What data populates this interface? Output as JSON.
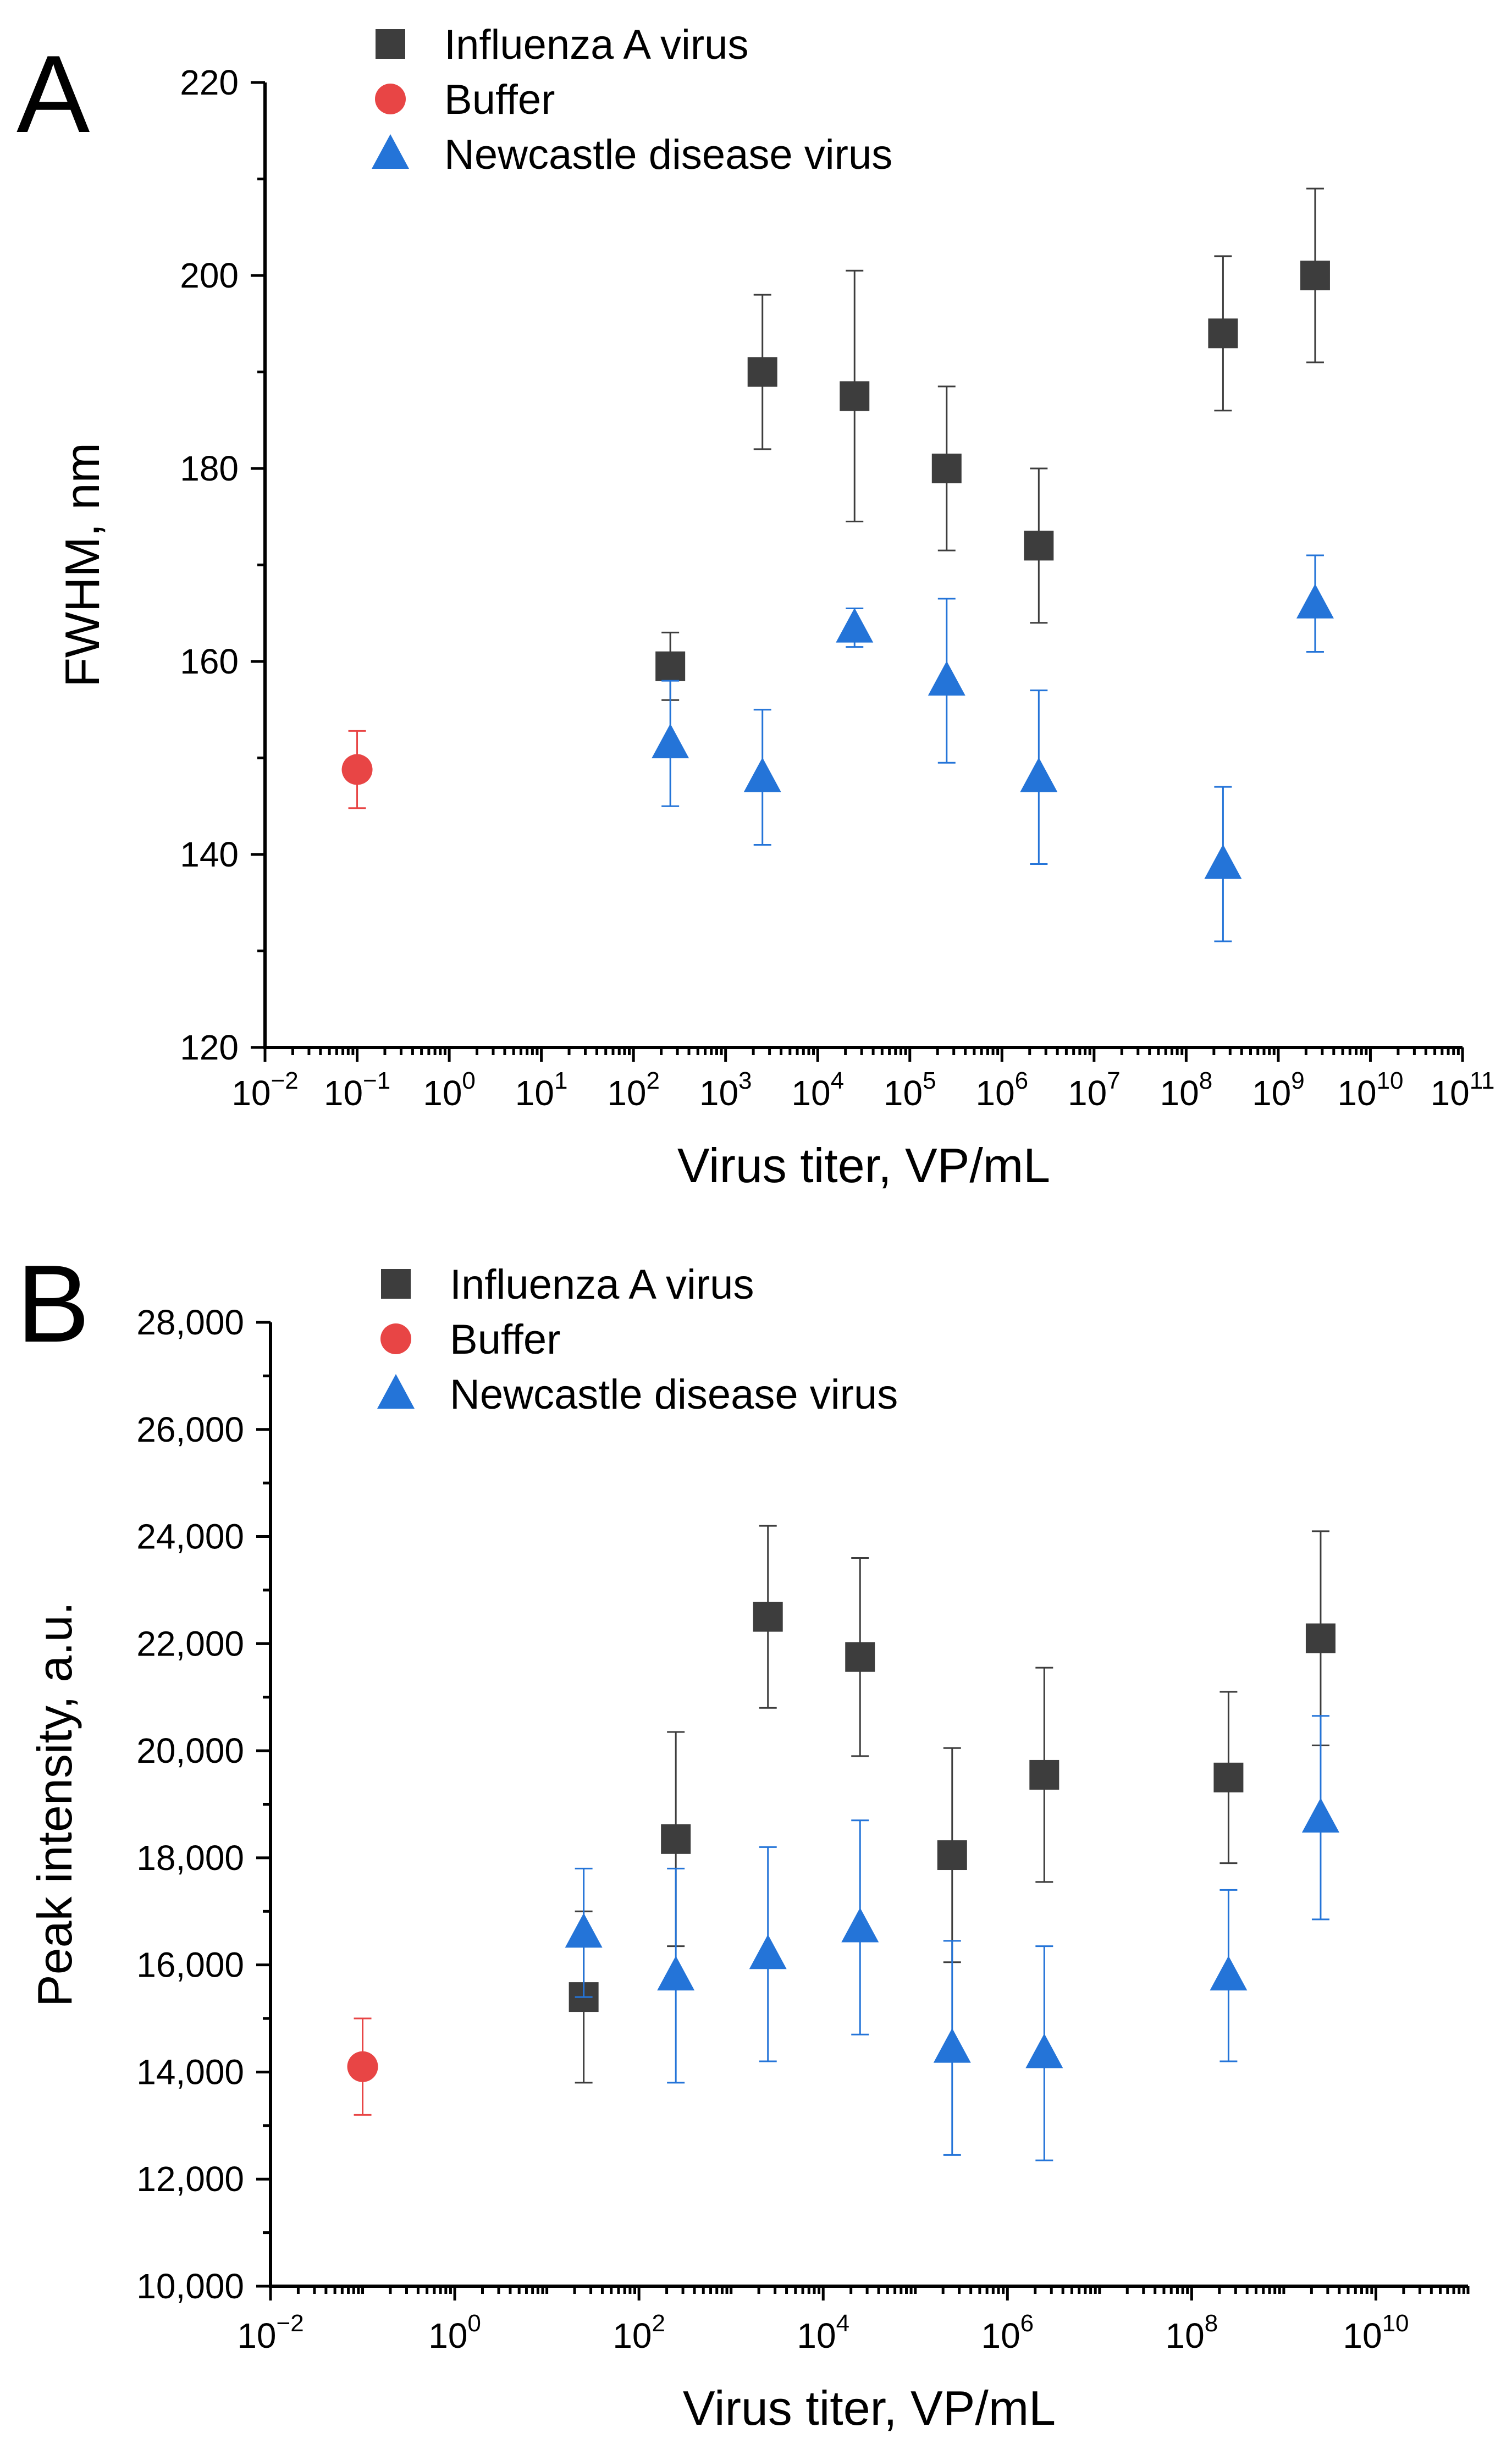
{
  "chart_data": [
    {
      "panel": "A",
      "type": "scatter",
      "title": "",
      "xlabel": "Virus titer, VP/mL",
      "ylabel": "FWHM, nm",
      "xscale": "log",
      "xlim_exp": [
        -2,
        11
      ],
      "x_tick_exponents": [
        -2,
        -1,
        0,
        1,
        2,
        3,
        4,
        5,
        6,
        7,
        8,
        9,
        10,
        11
      ],
      "ylim": [
        120,
        220
      ],
      "y_ticks": [
        120,
        140,
        160,
        180,
        200,
        220
      ],
      "y_tick_labels": [
        "120",
        "140",
        "160",
        "180",
        "200",
        "220"
      ],
      "legend": {
        "position": "top-left",
        "entries": [
          "Influenza A virus",
          "Buffer",
          "Newcastle disease virus"
        ]
      },
      "series": [
        {
          "name": "Influenza A virus",
          "marker": "square",
          "color": "#3d3d3d",
          "x_exp": [
            2.4,
            3.4,
            4.4,
            5.4,
            6.4,
            8.4,
            9.4
          ],
          "y": [
            159.5,
            190,
            187.5,
            180,
            172,
            194,
            200
          ],
          "err": [
            3.5,
            8,
            13,
            8.5,
            8,
            8,
            9
          ]
        },
        {
          "name": "Buffer",
          "marker": "circle",
          "color": "#e84545",
          "x_exp": [
            -1
          ],
          "y": [
            148.8
          ],
          "err": [
            4
          ]
        },
        {
          "name": "Newcastle disease virus",
          "marker": "triangle",
          "color": "#2474d8",
          "x_exp": [
            2.4,
            3.4,
            4.4,
            5.4,
            6.4,
            8.4,
            9.4
          ],
          "y": [
            151.5,
            148,
            163.5,
            158,
            148,
            139,
            166
          ],
          "err": [
            6.5,
            7,
            2,
            8.5,
            9,
            8,
            5
          ]
        }
      ]
    },
    {
      "panel": "B",
      "type": "scatter",
      "title": "",
      "xlabel": "Virus titer, VP/mL",
      "ylabel": "Peak intensity, a.u.",
      "xscale": "log",
      "xlim_exp": [
        -2,
        11
      ],
      "x_tick_exponents": [
        -2,
        0,
        2,
        4,
        6,
        8,
        10
      ],
      "ylim": [
        10000,
        28000
      ],
      "y_ticks": [
        10000,
        12000,
        14000,
        16000,
        18000,
        20000,
        22000,
        24000,
        26000,
        28000
      ],
      "y_tick_labels": [
        "10,000",
        "12,000",
        "14,000",
        "16,000",
        "18,000",
        "20,000",
        "22,000",
        "24,000",
        "26,000",
        "28,000"
      ],
      "legend": {
        "position": "top-left",
        "entries": [
          "Influenza A virus",
          "Buffer",
          "Newcastle disease virus"
        ]
      },
      "series": [
        {
          "name": "Influenza A virus",
          "marker": "square",
          "color": "#3d3d3d",
          "x_exp": [
            1.4,
            2.4,
            3.4,
            4.4,
            5.4,
            6.4,
            8.4,
            9.4
          ],
          "y": [
            15400,
            18350,
            22500,
            21750,
            18050,
            19550,
            19500,
            22100
          ],
          "err": [
            1600,
            2000,
            1700,
            1850,
            2000,
            2000,
            1600,
            2000
          ]
        },
        {
          "name": "Buffer",
          "marker": "circle",
          "color": "#e84545",
          "x_exp": [
            -1
          ],
          "y": [
            14100
          ],
          "err": [
            900
          ]
        },
        {
          "name": "Newcastle disease virus",
          "marker": "triangle",
          "color": "#2474d8",
          "x_exp": [
            1.4,
            2.4,
            3.4,
            4.4,
            5.4,
            6.4,
            8.4,
            9.4
          ],
          "y": [
            16600,
            15800,
            16200,
            16700,
            14450,
            14350,
            15800,
            18750
          ],
          "err": [
            1200,
            2000,
            2000,
            2000,
            2000,
            2000,
            1600,
            1900
          ]
        }
      ]
    }
  ]
}
